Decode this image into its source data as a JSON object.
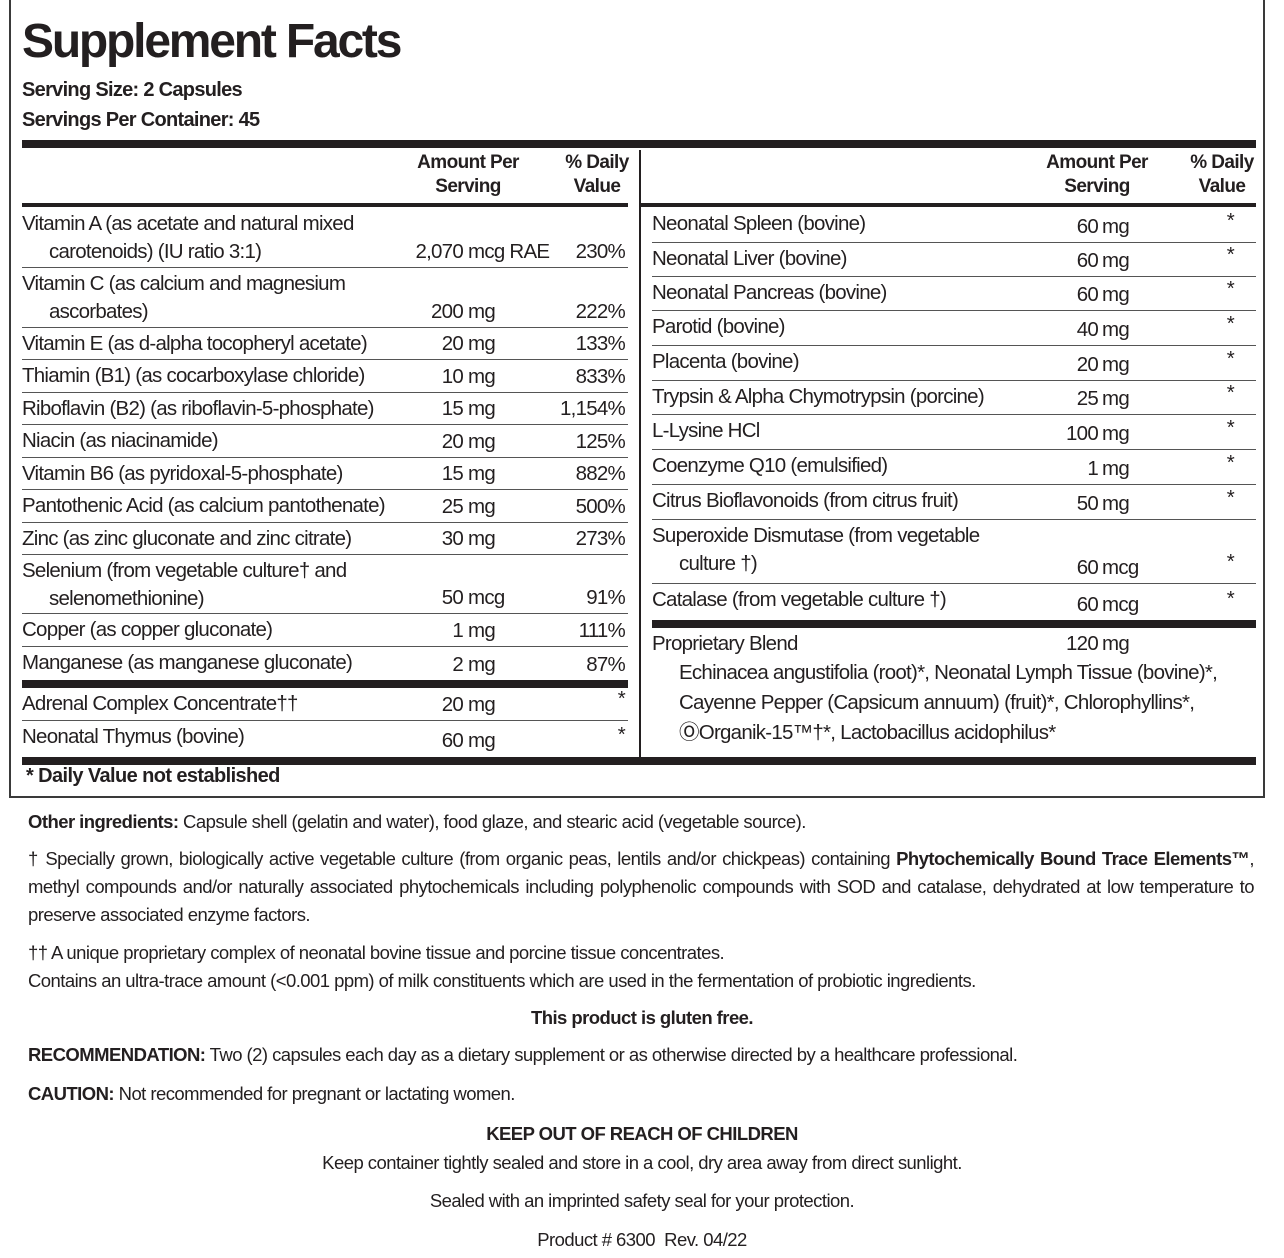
{
  "header": {
    "title": "Supplement Facts",
    "serving_size": "Serving Size: 2 Capsules",
    "servings_per_container": "Servings Per Container: 45"
  },
  "columns": {
    "amount_line1": "Amount Per",
    "amount_line2": "Serving",
    "dv_line1": "% Daily",
    "dv_line2": "Value"
  },
  "left_rows": [
    {
      "name": "Vitamin A (as acetate and natural mixed",
      "name_cont": "carotenoids) (IU ratio 3:1)",
      "num": "2,070",
      "unit": "mcg RAE",
      "dv": "230%"
    },
    {
      "name": "Vitamin C (as calcium and magnesium",
      "name_cont": "ascorbates)",
      "num": "200",
      "unit": "mg",
      "dv": "222%"
    },
    {
      "name": "Vitamin E (as d-alpha tocopheryl acetate)",
      "num": "20",
      "unit": "mg",
      "dv": "133%"
    },
    {
      "name": "Thiamin (B1) (as cocarboxylase chloride)",
      "num": "10",
      "unit": "mg",
      "dv": "833%"
    },
    {
      "name": "Riboflavin (B2) (as riboflavin-5-phosphate)",
      "num": "15",
      "unit": "mg",
      "dv": "1,154%"
    },
    {
      "name": "Niacin (as niacinamide)",
      "num": "20",
      "unit": "mg",
      "dv": "125%"
    },
    {
      "name": "Vitamin B6 (as pyridoxal-5-phosphate)",
      "num": "15",
      "unit": "mg",
      "dv": "882%"
    },
    {
      "name": "Pantothenic Acid (as calcium pantothenate)",
      "num": "25",
      "unit": "mg",
      "dv": "500%"
    },
    {
      "name": "Zinc (as zinc gluconate and zinc citrate)",
      "num": "30",
      "unit": "mg",
      "dv": "273%"
    },
    {
      "name": "Selenium (from vegetable culture† and",
      "name_cont": "selenomethionine)",
      "num": "50",
      "unit": "mcg",
      "dv": "91%"
    },
    {
      "name": "Copper (as copper gluconate)",
      "num": "1",
      "unit": "mg",
      "dv": "111%"
    },
    {
      "name": "Manganese (as manganese gluconate)",
      "num": "2",
      "unit": "mg",
      "dv": "87%"
    },
    {
      "name": "Adrenal Complex Concentrate††",
      "num": "20",
      "unit": "mg",
      "dv": "*"
    },
    {
      "name": "Neonatal Thymus (bovine)",
      "num": "60",
      "unit": "mg",
      "dv": "*"
    }
  ],
  "right_rows": [
    {
      "name": "Neonatal Spleen (bovine)",
      "num": "60",
      "unit": "mg",
      "dv": "*"
    },
    {
      "name": "Neonatal Liver (bovine)",
      "num": "60",
      "unit": "mg",
      "dv": "*"
    },
    {
      "name": "Neonatal Pancreas (bovine)",
      "num": "60",
      "unit": "mg",
      "dv": "*"
    },
    {
      "name": "Parotid (bovine)",
      "num": "40",
      "unit": "mg",
      "dv": "*"
    },
    {
      "name": "Placenta (bovine)",
      "num": "20",
      "unit": "mg",
      "dv": "*"
    },
    {
      "name": "Trypsin & Alpha Chymotrypsin (porcine)",
      "num": "25",
      "unit": "mg",
      "dv": "*"
    },
    {
      "name": "L-Lysine HCl",
      "num": "100",
      "unit": "mg",
      "dv": "*"
    },
    {
      "name": "Coenzyme Q10 (emulsified)",
      "num": "1",
      "unit": "mg",
      "dv": "*"
    },
    {
      "name": "Citrus Bioflavonoids (from citrus fruit)",
      "num": "50",
      "unit": "mg",
      "dv": "*"
    },
    {
      "name": "Superoxide Dismutase (from vegetable",
      "name_cont": "culture †)",
      "num": "60",
      "unit": "mcg",
      "dv": "*"
    },
    {
      "name": "Catalase (from vegetable culture †)",
      "num": "60",
      "unit": "mcg",
      "dv": "*"
    }
  ],
  "blend": {
    "name": "Proprietary Blend",
    "num": "120",
    "unit": "mg",
    "ingredients": [
      "Echinacea angustifolia (root)*, Neonatal Lymph Tissue (bovine)*,",
      "Cayenne Pepper (Capsicum annuum) (fruit)*, Chlorophyllins*,",
      "ⓄOrganik-15™†*, Lactobacillus acidophilus*"
    ]
  },
  "footnote": "* Daily Value not established",
  "other_ingredients": {
    "label": "Other ingredients:",
    "text": " Capsule shell (gelatin and water), food glaze, and stearic acid (vegetable source)."
  },
  "dagger_note": {
    "before": "† Specially grown, biologically active vegetable culture (from organic peas, lentils and/or chickpeas) containing ",
    "bold": "Phytochemically Bound Trace Elements™",
    "after": ", methyl compounds and/or naturally associated phytochemicals including polyphenolic compounds with SOD and catalase, dehydrated at low temperature to preserve associated enzyme factors."
  },
  "double_dagger_note": "†† A unique proprietary complex of neonatal bovine tissue and porcine tissue concentrates.",
  "milk_note": "Contains an ultra-trace amount (<0.001 ppm) of milk constituents which are used in the fermentation of probiotic ingredients.",
  "gluten_free": "This product is gluten free.",
  "recommendation": {
    "label": "RECOMMENDATION:",
    "text": " Two (2) capsules each day as a dietary supplement or as otherwise directed by a healthcare professional."
  },
  "caution": {
    "label": "CAUTION:",
    "text": " Not recommended for pregnant or lactating women."
  },
  "keep_out": "KEEP OUT OF REACH OF CHILDREN",
  "storage": "Keep container tightly sealed and store in a cool, dry area away from direct sunlight.",
  "sealed": "Sealed with an imprinted safety seal for your protection.",
  "product": "Product # 6300  Rev. 04/22"
}
